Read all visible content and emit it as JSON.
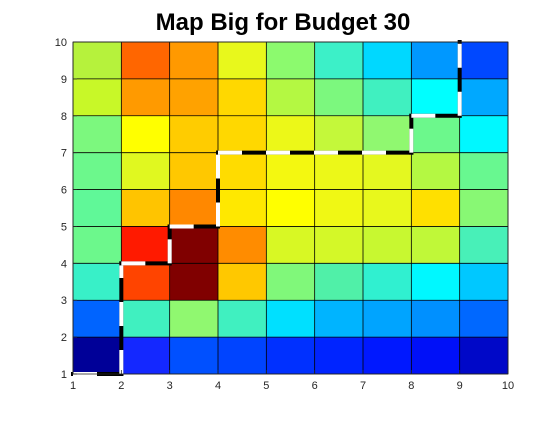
{
  "chart_data": {
    "type": "heatmap",
    "title": "Map Big for Budget 30",
    "xlabel": "",
    "ylabel": "",
    "xlim": [
      1,
      10
    ],
    "ylim": [
      1,
      10
    ],
    "xticks": [
      1,
      2,
      3,
      4,
      5,
      6,
      7,
      8,
      9,
      10
    ],
    "yticks": [
      1,
      2,
      3,
      4,
      5,
      6,
      7,
      8,
      9,
      10
    ],
    "grid": false,
    "colormap": "jet",
    "cell_colors_top_to_bottom": [
      [
        "#b6f23c",
        "#ff6600",
        "#ff9900",
        "#e8f81c",
        "#8cfa6e",
        "#3cf0c8",
        "#00d8ff",
        "#0098ff",
        "#0048ff"
      ],
      [
        "#c8f828",
        "#ff9a00",
        "#ffa200",
        "#ffd800",
        "#b4f842",
        "#7cf87e",
        "#40f0c0",
        "#00ffff",
        "#00a8ff"
      ],
      [
        "#7cf87e",
        "#ffff00",
        "#ffcc00",
        "#ffd800",
        "#ecf818",
        "#c4f83a",
        "#90f870",
        "#6cf88c",
        "#00f8ff"
      ],
      [
        "#6cf88c",
        "#e0f820",
        "#ffc800",
        "#ffdc00",
        "#f4f810",
        "#ecf818",
        "#e4f820",
        "#b4f842",
        "#68f890"
      ],
      [
        "#60f898",
        "#ffc400",
        "#ff8800",
        "#ffe800",
        "#ffff00",
        "#f0f814",
        "#e8f81c",
        "#ffe000",
        "#88f874"
      ],
      [
        "#6cf88c",
        "#ff1a00",
        "#800000",
        "#ff8c00",
        "#d8f824",
        "#d4f828",
        "#c8f830",
        "#c0f838",
        "#48f0b8"
      ],
      [
        "#38f0c8",
        "#ff4400",
        "#800000",
        "#ffc800",
        "#80f87a",
        "#50f0a8",
        "#30f0d0",
        "#00f8ff",
        "#00c8ff"
      ],
      [
        "#0064ff",
        "#40f0c0",
        "#90f870",
        "#40f0c0",
        "#00e0ff",
        "#00b4ff",
        "#00a4ff",
        "#0090ff",
        "#0068ff"
      ],
      [
        "#000098",
        "#1428ff",
        "#0050ff",
        "#0044ff",
        "#0030ff",
        "#0024ff",
        "#0018ff",
        "#0010f8",
        "#0008c8"
      ]
    ],
    "path_segments": [
      {
        "from": [
          1,
          1
        ],
        "to": [
          2,
          1
        ]
      },
      {
        "from": [
          2,
          1
        ],
        "to": [
          2,
          4
        ]
      },
      {
        "from": [
          2,
          4
        ],
        "to": [
          3,
          4
        ]
      },
      {
        "from": [
          3,
          4
        ],
        "to": [
          3,
          5
        ]
      },
      {
        "from": [
          3,
          5
        ],
        "to": [
          4,
          5
        ]
      },
      {
        "from": [
          4,
          5
        ],
        "to": [
          4,
          7
        ]
      },
      {
        "from": [
          4,
          7
        ],
        "to": [
          8,
          7
        ]
      },
      {
        "from": [
          8,
          7
        ],
        "to": [
          8,
          8
        ]
      },
      {
        "from": [
          8,
          8
        ],
        "to": [
          9,
          8
        ]
      },
      {
        "from": [
          9,
          8
        ],
        "to": [
          9,
          10
        ]
      }
    ]
  }
}
